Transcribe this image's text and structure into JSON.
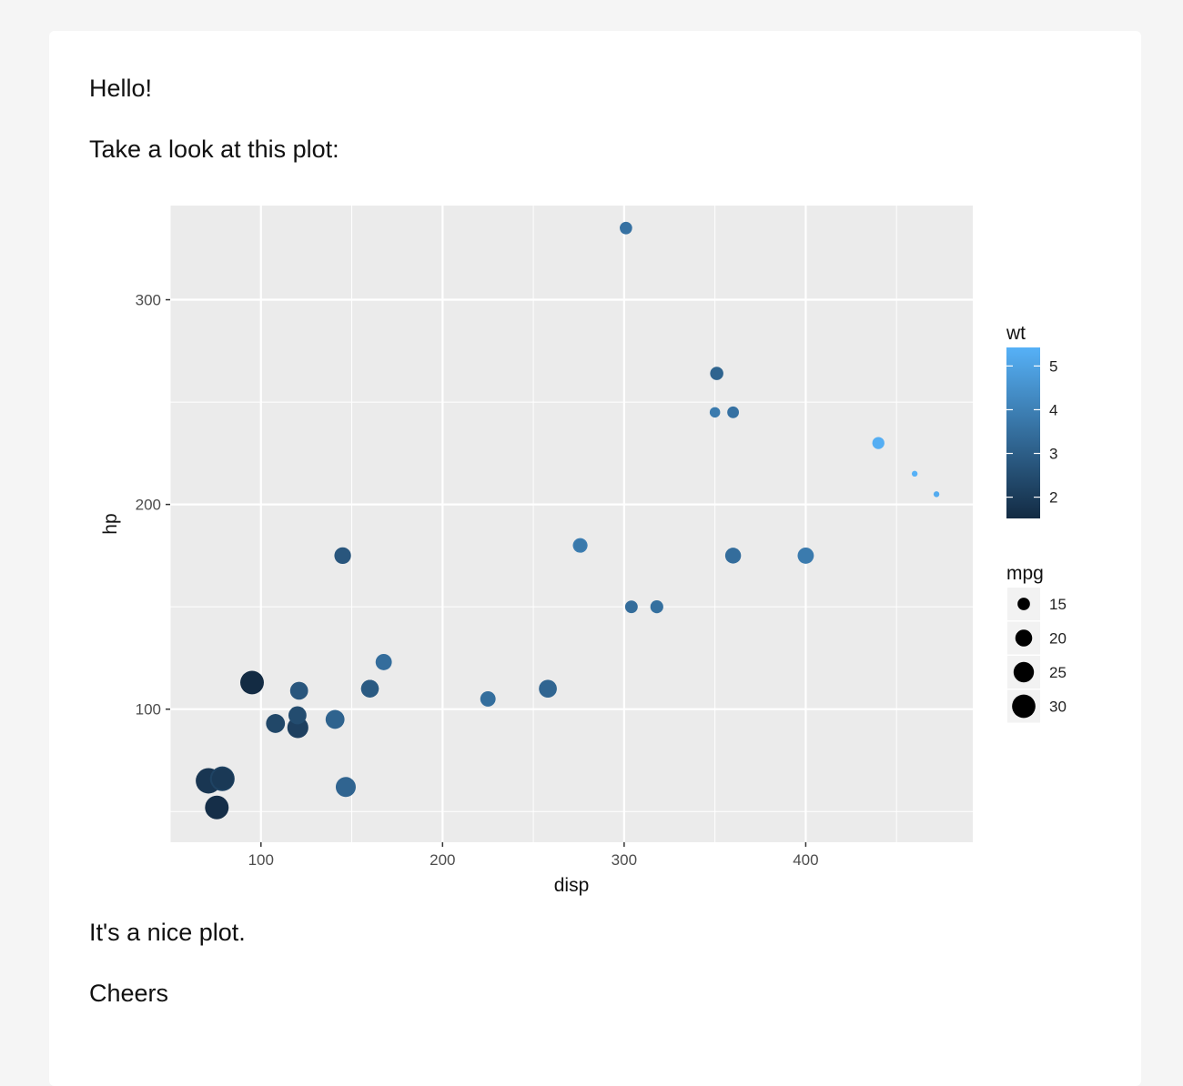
{
  "message": {
    "greeting": "Hello!",
    "intro": "Take a look at this plot:",
    "comment": "It's a nice plot.",
    "signoff": "Cheers"
  },
  "chart_data": {
    "type": "scatter",
    "title": "",
    "xlabel": "disp",
    "ylabel": "hp",
    "xlim": [
      50,
      492
    ],
    "ylim": [
      35,
      346
    ],
    "x_ticks": [
      100,
      200,
      300,
      400
    ],
    "y_ticks": [
      100,
      200,
      300
    ],
    "grid": true,
    "panel_background": "#ebebeb",
    "grid_color": "#ffffff",
    "color_scale": {
      "variable": "wt",
      "low": 1.513,
      "high": 5.424,
      "low_color": "#132b43",
      "high_color": "#56b1f7",
      "breaks": [
        2,
        3,
        4,
        5
      ]
    },
    "size_scale": {
      "variable": "mpg",
      "breaks": [
        15,
        20,
        25,
        30
      ]
    },
    "legend_placement": "right",
    "points": [
      {
        "disp": 160,
        "hp": 110,
        "wt": 2.62,
        "mpg": 21.0
      },
      {
        "disp": 160,
        "hp": 110,
        "wt": 2.875,
        "mpg": 21.0
      },
      {
        "disp": 108,
        "hp": 93,
        "wt": 2.32,
        "mpg": 22.8
      },
      {
        "disp": 258,
        "hp": 110,
        "wt": 3.215,
        "mpg": 21.4
      },
      {
        "disp": 360,
        "hp": 175,
        "wt": 3.44,
        "mpg": 18.7
      },
      {
        "disp": 225,
        "hp": 105,
        "wt": 3.46,
        "mpg": 18.1
      },
      {
        "disp": 360,
        "hp": 245,
        "wt": 3.57,
        "mpg": 14.3
      },
      {
        "disp": 146.7,
        "hp": 62,
        "wt": 3.19,
        "mpg": 24.4
      },
      {
        "disp": 140.8,
        "hp": 95,
        "wt": 3.15,
        "mpg": 22.8
      },
      {
        "disp": 167.6,
        "hp": 123,
        "wt": 3.44,
        "mpg": 19.2
      },
      {
        "disp": 167.6,
        "hp": 123,
        "wt": 3.44,
        "mpg": 17.8
      },
      {
        "disp": 275.8,
        "hp": 180,
        "wt": 4.07,
        "mpg": 16.4
      },
      {
        "disp": 275.8,
        "hp": 180,
        "wt": 3.73,
        "mpg": 17.3
      },
      {
        "disp": 275.8,
        "hp": 180,
        "wt": 3.78,
        "mpg": 15.2
      },
      {
        "disp": 472,
        "hp": 205,
        "wt": 5.25,
        "mpg": 10.4
      },
      {
        "disp": 460,
        "hp": 215,
        "wt": 5.424,
        "mpg": 10.4
      },
      {
        "disp": 440,
        "hp": 230,
        "wt": 5.345,
        "mpg": 14.7
      },
      {
        "disp": 78.7,
        "hp": 66,
        "wt": 2.2,
        "mpg": 32.4
      },
      {
        "disp": 75.7,
        "hp": 52,
        "wt": 1.615,
        "mpg": 30.4
      },
      {
        "disp": 71.1,
        "hp": 65,
        "wt": 1.835,
        "mpg": 33.9
      },
      {
        "disp": 120.1,
        "hp": 97,
        "wt": 2.465,
        "mpg": 21.5
      },
      {
        "disp": 318,
        "hp": 150,
        "wt": 3.52,
        "mpg": 15.5
      },
      {
        "disp": 304,
        "hp": 150,
        "wt": 3.435,
        "mpg": 15.2
      },
      {
        "disp": 350,
        "hp": 245,
        "wt": 3.84,
        "mpg": 13.3
      },
      {
        "disp": 400,
        "hp": 175,
        "wt": 3.845,
        "mpg": 19.2
      },
      {
        "disp": 79,
        "hp": 66,
        "wt": 1.935,
        "mpg": 27.3
      },
      {
        "disp": 120.3,
        "hp": 91,
        "wt": 2.14,
        "mpg": 26.0
      },
      {
        "disp": 95.1,
        "hp": 113,
        "wt": 1.513,
        "mpg": 30.4
      },
      {
        "disp": 351,
        "hp": 264,
        "wt": 3.17,
        "mpg": 15.8
      },
      {
        "disp": 145,
        "hp": 175,
        "wt": 2.77,
        "mpg": 19.7
      },
      {
        "disp": 301,
        "hp": 335,
        "wt": 3.57,
        "mpg": 15.0
      },
      {
        "disp": 121,
        "hp": 109,
        "wt": 2.78,
        "mpg": 21.4
      }
    ]
  }
}
